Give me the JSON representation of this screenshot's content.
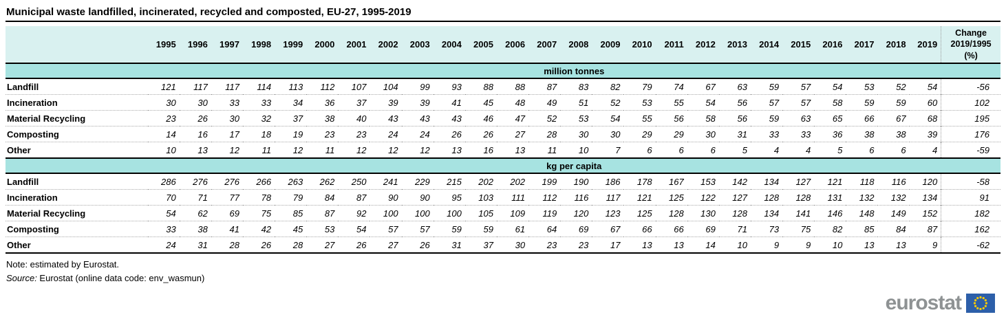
{
  "title": "Municipal waste landfilled, incinerated, recycled and composted, EU-27, 1995-2019",
  "header": {
    "change_label": "Change\n2019/1995\n(%)"
  },
  "chart_data": {
    "type": "table",
    "title": "Municipal waste landfilled, incinerated, recycled and composted, EU-27, 1995-2019",
    "years": [
      "1995",
      "1996",
      "1997",
      "1998",
      "1999",
      "2000",
      "2001",
      "2002",
      "2003",
      "2004",
      "2005",
      "2006",
      "2007",
      "2008",
      "2009",
      "2010",
      "2011",
      "2012",
      "2013",
      "2014",
      "2015",
      "2016",
      "2017",
      "2018",
      "2019"
    ],
    "change_column": "Change 2019/1995 (%)",
    "sections": [
      {
        "unit": "million tonnes",
        "rows": [
          {
            "label": "Landfill",
            "values": [
              121,
              117,
              117,
              114,
              113,
              112,
              107,
              104,
              99,
              93,
              88,
              88,
              87,
              83,
              82,
              79,
              74,
              67,
              63,
              59,
              57,
              54,
              53,
              52,
              54
            ],
            "change": -56
          },
          {
            "label": "Incineration",
            "values": [
              30,
              30,
              33,
              33,
              34,
              36,
              37,
              39,
              39,
              41,
              45,
              48,
              49,
              51,
              52,
              53,
              55,
              54,
              56,
              57,
              57,
              58,
              59,
              59,
              60
            ],
            "change": 102
          },
          {
            "label": "Material Recycling",
            "values": [
              23,
              26,
              30,
              32,
              37,
              38,
              40,
              43,
              43,
              43,
              46,
              47,
              52,
              53,
              54,
              55,
              56,
              58,
              56,
              59,
              63,
              65,
              66,
              67,
              68
            ],
            "change": 195
          },
          {
            "label": "Composting",
            "values": [
              14,
              16,
              17,
              18,
              19,
              23,
              23,
              24,
              24,
              26,
              26,
              27,
              28,
              30,
              30,
              29,
              29,
              30,
              31,
              33,
              33,
              36,
              38,
              38,
              39
            ],
            "change": 176
          },
          {
            "label": "Other",
            "values": [
              10,
              13,
              12,
              11,
              12,
              11,
              12,
              12,
              12,
              13,
              16,
              13,
              11,
              10,
              7,
              6,
              6,
              6,
              5,
              4,
              4,
              5,
              6,
              6,
              4
            ],
            "change": -59
          }
        ]
      },
      {
        "unit": "kg per capita",
        "rows": [
          {
            "label": "Landfill",
            "values": [
              286,
              276,
              276,
              266,
              263,
              262,
              250,
              241,
              229,
              215,
              202,
              202,
              199,
              190,
              186,
              178,
              167,
              153,
              142,
              134,
              127,
              121,
              118,
              116,
              120
            ],
            "change": -58
          },
          {
            "label": "Incineration",
            "values": [
              70,
              71,
              77,
              78,
              79,
              84,
              87,
              90,
              90,
              95,
              103,
              111,
              112,
              116,
              117,
              121,
              125,
              122,
              127,
              128,
              128,
              131,
              132,
              132,
              134
            ],
            "change": 91
          },
          {
            "label": "Material Recycling",
            "values": [
              54,
              62,
              69,
              75,
              85,
              87,
              92,
              100,
              100,
              100,
              105,
              109,
              119,
              120,
              123,
              125,
              128,
              130,
              128,
              134,
              141,
              146,
              148,
              149,
              152
            ],
            "change": 182
          },
          {
            "label": "Composting",
            "values": [
              33,
              38,
              41,
              42,
              45,
              53,
              54,
              57,
              57,
              59,
              59,
              61,
              64,
              69,
              67,
              66,
              66,
              69,
              71,
              73,
              75,
              82,
              85,
              84,
              87
            ],
            "change": 162
          },
          {
            "label": "Other",
            "values": [
              24,
              31,
              28,
              26,
              28,
              27,
              26,
              27,
              26,
              31,
              37,
              30,
              23,
              23,
              17,
              13,
              13,
              14,
              10,
              9,
              9,
              10,
              13,
              13,
              9
            ],
            "change": -62
          }
        ]
      }
    ]
  },
  "footer": {
    "note": "Note: estimated by Eurostat.",
    "source_label": "Source:",
    "source_text": " Eurostat (online data code: env_wasmun)"
  },
  "logo": {
    "text": "eurostat"
  },
  "colors": {
    "header_bg": "#d9f1f0",
    "unit_band_bg": "#a7e3e1",
    "logo_gray": "#8e9293",
    "eu_flag_blue": "#2d5fa9",
    "eu_star_yellow": "#ffcc00"
  }
}
